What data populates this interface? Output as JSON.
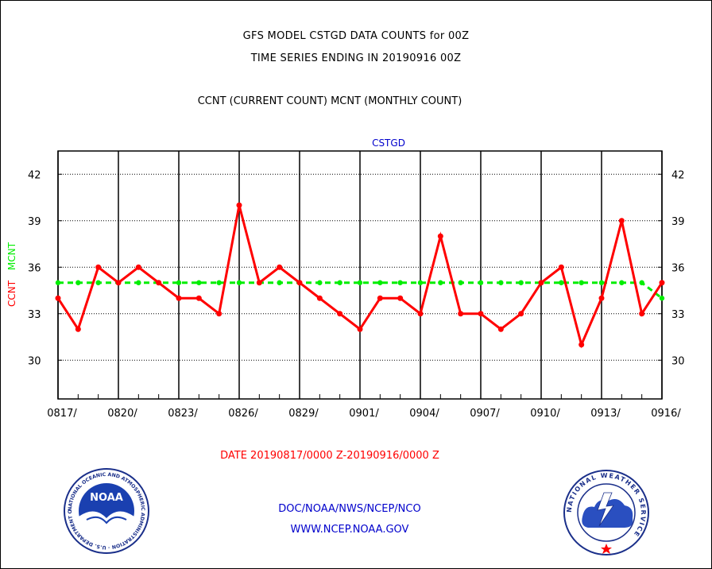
{
  "header": {
    "line1": "GFS MODEL CSTGD DATA COUNTS for 00Z",
    "line2": "TIME SERIES ENDING IN 20190916 00Z",
    "line3": "CCNT (CURRENT COUNT) MCNT (MONTHLY COUNT)"
  },
  "footer": {
    "date_range": "DATE 20190817/0000 Z-20190916/0000 Z",
    "org": "DOC/NOAA/NWS/NCEP/NCO",
    "url": "WWW.NCEP.NOAA.GOV"
  },
  "logos": {
    "noaa_text": "NOAA",
    "noaa_ring": "NATIONAL OCEANIC AND ATMOSPHERIC ADMINISTRATION · U.S. DEPARTMENT OF COMMERCE ·",
    "nws_ring": "NATIONAL WEATHER SERVICE"
  },
  "colors": {
    "ccnt": "#ff0000",
    "mcnt": "#00ee00",
    "title_blue": "#0000cc",
    "footer_blue": "#0000cc",
    "date_red": "#ff0000"
  },
  "chart_data": {
    "type": "line",
    "title": "CSTGD",
    "ylabel_series": [
      "CCNT",
      "MCNT"
    ],
    "ylim": [
      27.5,
      43.5
    ],
    "yticks": [
      30,
      33,
      36,
      39,
      42
    ],
    "xlim": [
      0,
      30
    ],
    "xtick_labels": [
      "0817/",
      "0820/",
      "0823/",
      "0826/",
      "0829/",
      "0901/",
      "0904/",
      "0907/",
      "0910/",
      "0913/",
      "0916/"
    ],
    "xtick_positions": [
      0,
      3,
      6,
      9,
      12,
      15,
      18,
      21,
      24,
      27,
      30
    ],
    "vertical_grid": [
      0,
      3,
      6,
      9,
      12,
      15,
      18,
      21,
      24,
      27,
      30
    ],
    "horizontal_grid": true,
    "x_dates": [
      "0817",
      "0818",
      "0819",
      "0820",
      "0821",
      "0822",
      "0823",
      "0824",
      "0825",
      "0826",
      "0827",
      "0828",
      "0829",
      "0830",
      "0831",
      "0901",
      "0902",
      "0903",
      "0904",
      "0905",
      "0906",
      "0907",
      "0908",
      "0909",
      "0910",
      "0911",
      "0912",
      "0913",
      "0914",
      "0915",
      "0916"
    ],
    "series": [
      {
        "name": "CCNT",
        "color": "#ff0000",
        "values": [
          34,
          32,
          36,
          35,
          36,
          35,
          34,
          34,
          33,
          40,
          35,
          36,
          35,
          34,
          33,
          32,
          34,
          34,
          33,
          38,
          33,
          33,
          32,
          33,
          35,
          36,
          31,
          34,
          39,
          33,
          35
        ]
      },
      {
        "name": "MCNT",
        "color": "#00ee00",
        "values": [
          35,
          35,
          35,
          35,
          35,
          35,
          35,
          35,
          35,
          35,
          35,
          35,
          35,
          35,
          35,
          35,
          35,
          35,
          35,
          35,
          35,
          35,
          35,
          35,
          35,
          35,
          35,
          35,
          35,
          35,
          34
        ]
      }
    ]
  }
}
